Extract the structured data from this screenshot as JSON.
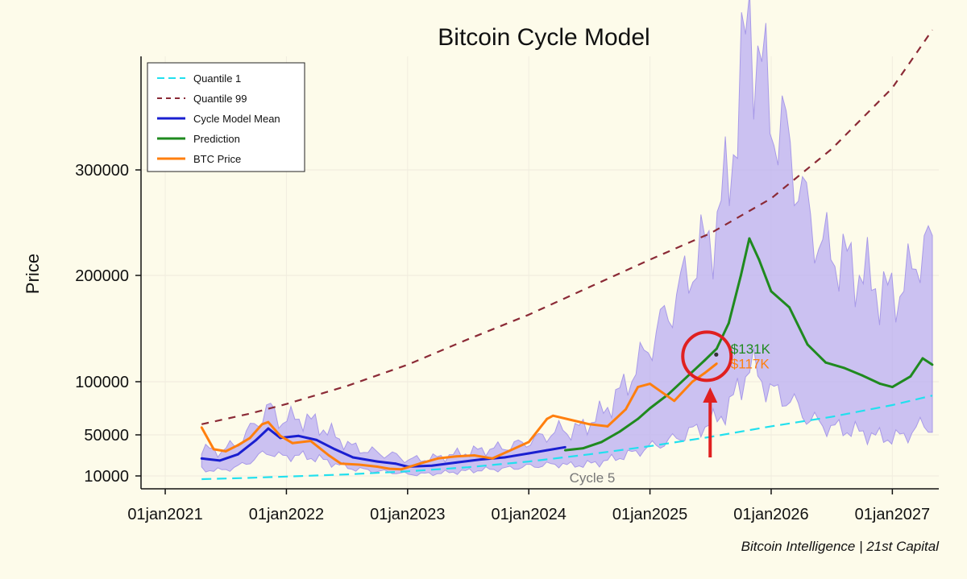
{
  "chart_data": {
    "type": "line",
    "title": "Bitcoin Cycle Model",
    "ylabel": "Price",
    "xlabel": "",
    "credit": "Bitcoin Intelligence | 21st Capital",
    "cycle_label": "Cycle 5",
    "x_ticks": [
      "01jan2021",
      "01jan2022",
      "01jan2023",
      "01jan2024",
      "01jan2025",
      "01jan2026",
      "01jan2027"
    ],
    "y_ticks": [
      10000,
      50000,
      100000,
      200000,
      300000
    ],
    "y_tick_labels": [
      "10000",
      "50000",
      "100000",
      "200000",
      "300000"
    ],
    "xlim": [
      2020.9,
      2027.35
    ],
    "ylim_note": "nonlinear (sqrt-like) price scale",
    "legend": {
      "position": "top-left",
      "entries": [
        {
          "key": "q1",
          "label": "Quantile 1",
          "color": "#22e0ee",
          "style": "dashed"
        },
        {
          "key": "q99",
          "label": "Quantile 99",
          "color": "#8b2a36",
          "style": "dashed"
        },
        {
          "key": "mean",
          "label": "Cycle Model Mean",
          "color": "#1a1fd0",
          "style": "solid"
        },
        {
          "key": "pred",
          "label": "Prediction",
          "color": "#1f8a1f",
          "style": "solid"
        },
        {
          "key": "btc",
          "label": "BTC Price",
          "color": "#ff7f0e",
          "style": "solid"
        }
      ]
    },
    "band_color": "#b9aef3",
    "series": [
      {
        "name": "Quantile 1",
        "key": "q1",
        "x": [
          2021.3,
          2021.7,
          2022.0,
          2022.5,
          2023.0,
          2023.5,
          2024.0,
          2024.5,
          2025.0,
          2025.5,
          2026.0,
          2026.5,
          2027.0,
          2027.33
        ],
        "y": [
          7500,
          8500,
          9500,
          11500,
          14500,
          18500,
          24000,
          31000,
          39000,
          48000,
          58000,
          67000,
          78000,
          87000
        ]
      },
      {
        "name": "Quantile 99",
        "key": "q99",
        "x": [
          2021.3,
          2021.7,
          2022.0,
          2022.5,
          2023.0,
          2023.5,
          2024.0,
          2024.5,
          2025.0,
          2025.5,
          2026.0,
          2026.5,
          2027.0,
          2027.33
        ],
        "y": [
          60000,
          70000,
          79000,
          96000,
          116000,
          140000,
          163000,
          189000,
          215000,
          240000,
          273000,
          320000,
          378000,
          433000
        ]
      },
      {
        "name": "Cycle Model Mean",
        "key": "mean",
        "x": [
          2021.3,
          2021.45,
          2021.6,
          2021.75,
          2021.85,
          2021.95,
          2022.1,
          2022.25,
          2022.4,
          2022.55,
          2022.75,
          2022.9,
          2023.0,
          2023.2,
          2023.4,
          2023.6,
          2023.8,
          2024.0,
          2024.15,
          2024.3
        ],
        "y": [
          27000,
          25000,
          31000,
          45000,
          56000,
          47000,
          49000,
          45000,
          36000,
          28000,
          24000,
          22000,
          19000,
          20000,
          23000,
          26000,
          28000,
          32000,
          35000,
          38000
        ]
      },
      {
        "name": "Prediction",
        "key": "pred",
        "x": [
          2024.3,
          2024.45,
          2024.6,
          2024.75,
          2024.9,
          2025.0,
          2025.15,
          2025.3,
          2025.45,
          2025.55,
          2025.65,
          2025.75,
          2025.82,
          2025.9,
          2026.0,
          2026.15,
          2026.3,
          2026.45,
          2026.6,
          2026.75,
          2026.9,
          2027.0,
          2027.15,
          2027.25,
          2027.33
        ],
        "y": [
          35000,
          37000,
          43000,
          53000,
          65000,
          75000,
          88000,
          104000,
          120000,
          131000,
          155000,
          200000,
          235000,
          215000,
          185000,
          170000,
          135000,
          118000,
          113000,
          106000,
          98000,
          95000,
          105000,
          122000,
          116000
        ]
      },
      {
        "name": "BTC Price",
        "key": "btc",
        "x": [
          2021.3,
          2021.4,
          2021.5,
          2021.6,
          2021.7,
          2021.8,
          2021.85,
          2021.95,
          2022.05,
          2022.2,
          2022.35,
          2022.45,
          2022.6,
          2022.75,
          2022.85,
          2022.95,
          2023.1,
          2023.25,
          2023.4,
          2023.55,
          2023.7,
          2023.85,
          2024.0,
          2024.15,
          2024.2,
          2024.35,
          2024.5,
          2024.65,
          2024.8,
          2024.9,
          2025.0,
          2025.1,
          2025.2,
          2025.35,
          2025.45,
          2025.55
        ],
        "y": [
          57000,
          36000,
          34000,
          40000,
          47000,
          60000,
          62000,
          49000,
          42000,
          44000,
          30000,
          22000,
          21000,
          19000,
          17000,
          16500,
          22000,
          27000,
          29000,
          30000,
          27000,
          35000,
          43000,
          65000,
          68000,
          64000,
          60000,
          58000,
          74000,
          95000,
          98000,
          90000,
          82000,
          100000,
          108000,
          117000
        ]
      }
    ],
    "annotations": [
      {
        "label": "$131K",
        "color": "#1f8a1f",
        "x": 2025.56,
        "y": 131000
      },
      {
        "label": "$117K",
        "color": "#ff7f0e",
        "x": 2025.56,
        "y": 117000
      }
    ],
    "highlight": {
      "x": 2025.47,
      "y": 124000,
      "color": "#e02020",
      "arrow": true
    }
  }
}
